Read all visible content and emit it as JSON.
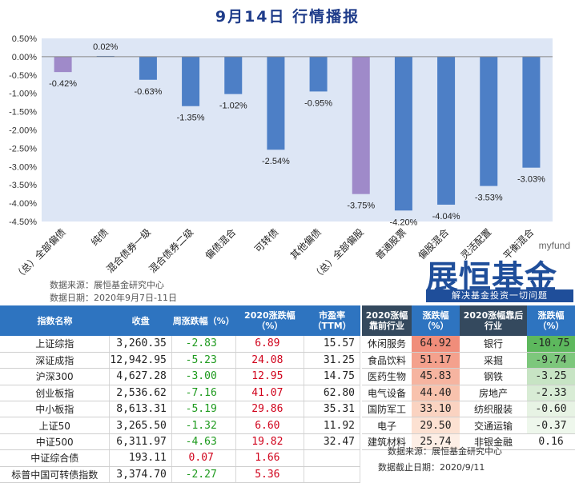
{
  "title": "9月14日  行情播报",
  "chart_data": {
    "type": "bar",
    "categories": [
      "（总）全部偏债",
      "纯债",
      "混合债券一级",
      "混合债券二级",
      "偏债混合",
      "可转债",
      "其他偏债",
      "（总）全部偏股",
      "普通股票",
      "偏股混合",
      "灵活配置",
      "平衡混合"
    ],
    "values": [
      -0.42,
      0.02,
      -0.63,
      -1.35,
      -1.02,
      -2.54,
      -0.95,
      -3.75,
      -4.2,
      -4.04,
      -3.53,
      -3.03
    ],
    "data_labels": [
      "-0.42%",
      "0.02%",
      "-0.63%",
      "-1.35%",
      "-1.02%",
      "-2.54%",
      "-0.95%",
      "-3.75%",
      "-4.20%",
      "-4.04%",
      "-3.53%",
      "-3.03%"
    ],
    "ylim": [
      -4.5,
      0.5
    ],
    "yticks": [
      "0.50%",
      "0.00%",
      "-0.50%",
      "-1.00%",
      "-1.50%",
      "-2.00%",
      "-2.50%",
      "-3.00%",
      "-3.50%",
      "-4.00%",
      "-4.50%"
    ],
    "highlight_categories": [
      "（总）全部偏债",
      "（总）全部偏股"
    ],
    "colors": {
      "bar": "#4d7fc6",
      "highlight": "#9f8ac9",
      "plot_bg": "#dde6f5"
    }
  },
  "source_lines": [
    "数据来源：展恒基金研究中心",
    "数据日期：2020年9月7日-11日"
  ],
  "logo": {
    "small": "myfund",
    "main": "展恒基金",
    "slogan": "解决基金投资一切问题"
  },
  "index_table": {
    "headers": [
      "指数名称",
      "收盘",
      "周涨跌幅（%）",
      "2020涨跌幅（%）",
      "市盈率（TTM）"
    ],
    "rows": [
      [
        "上证综指",
        "3,260.35",
        "-2.83",
        "6.89",
        "15.57"
      ],
      [
        "深证成指",
        "12,942.95",
        "-5.23",
        "24.08",
        "31.25"
      ],
      [
        "沪深300",
        "4,627.28",
        "-3.00",
        "12.95",
        "14.75"
      ],
      [
        "创业板指",
        "2,536.62",
        "-7.16",
        "41.07",
        "62.80"
      ],
      [
        "中小板指",
        "8,613.31",
        "-5.19",
        "29.86",
        "35.31"
      ],
      [
        "上证50",
        "3,265.50",
        "-1.32",
        "6.60",
        "11.92"
      ],
      [
        "中证500",
        "6,311.97",
        "-4.63",
        "19.82",
        "32.47"
      ],
      [
        "中证综合债",
        "193.11",
        "0.07",
        "1.66",
        ""
      ],
      [
        "标普中国可转债指数",
        "3,374.70",
        "-2.27",
        "5.36",
        ""
      ]
    ]
  },
  "industry_table": {
    "headers": [
      "2020涨幅靠前行业",
      "涨跌幅（%）",
      "2020涨幅靠后行业",
      "涨跌幅（%）"
    ],
    "rows": [
      [
        "休闲服务",
        "64.92",
        "银行",
        "-10.75"
      ],
      [
        "食品饮料",
        "51.17",
        "采掘",
        "-9.74"
      ],
      [
        "医药生物",
        "45.83",
        "钢铁",
        "-3.25"
      ],
      [
        "电气设备",
        "44.40",
        "房地产",
        "-2.33"
      ],
      [
        "国防军工",
        "33.10",
        "纺织服装",
        "-0.60"
      ],
      [
        "电子",
        "29.50",
        "交通运输",
        "-0.37"
      ],
      [
        "建筑材料",
        "25.74",
        "非银金融",
        "0.16"
      ]
    ],
    "top_colors": [
      "#f08d7a",
      "#f4a18d",
      "#f6b4a0",
      "#f8c2ad",
      "#fad3c1",
      "#fce1d2",
      "#fdeee5"
    ],
    "bottom_colors": [
      "#5db85d",
      "#7dc77c",
      "#c7e4c4",
      "#d8ecd5",
      "#e7f3e4",
      "#eef7ec",
      "#ffffff"
    ]
  },
  "footer": {
    "source": "数据来源：展恒基金研究中心",
    "date": "数据截止日期：2020/9/11"
  }
}
